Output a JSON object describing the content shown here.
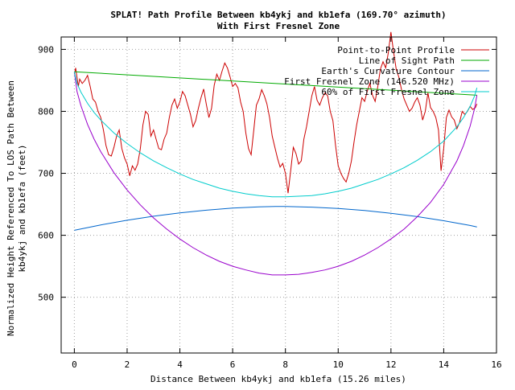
{
  "chart_data": {
    "type": "line",
    "title": "SPLAT! Path Profile Between kb4ykj and kb1efa (169.70° azimuth)",
    "subtitle": "With First Fresnel Zone",
    "xlabel": "Distance Between kb4ykj and kb1efa (15.26 miles)",
    "ylabel_line1": "Normalized Height Referenced To LOS Path Between",
    "ylabel_line2": "kb4ykj and kb1efa (feet)",
    "xlim": [
      -0.5,
      16
    ],
    "ylim": [
      410,
      920
    ],
    "x_ticks": [
      0,
      2,
      4,
      6,
      8,
      10,
      12,
      14,
      16
    ],
    "y_ticks": [
      500,
      600,
      700,
      800,
      900
    ],
    "x_tick_labels": [
      "0",
      "2",
      "4",
      "6",
      "8",
      "10",
      "12",
      "14",
      "16"
    ],
    "y_tick_labels": [
      "500",
      "600",
      "700",
      "800",
      "900"
    ],
    "grid": true,
    "legend_position": "top-right",
    "series": [
      {
        "name": "Point-to-Point Profile",
        "color": "#cc0000",
        "x": [
          0,
          0.05,
          0.1,
          0.15,
          0.2,
          0.3,
          0.4,
          0.5,
          0.6,
          0.7,
          0.8,
          0.9,
          1.0,
          1.1,
          1.2,
          1.3,
          1.4,
          1.5,
          1.6,
          1.7,
          1.8,
          1.9,
          2.0,
          2.1,
          2.2,
          2.3,
          2.4,
          2.5,
          2.6,
          2.7,
          2.8,
          2.9,
          3.0,
          3.1,
          3.2,
          3.3,
          3.4,
          3.5,
          3.6,
          3.7,
          3.8,
          3.9,
          4.0,
          4.1,
          4.2,
          4.3,
          4.4,
          4.5,
          4.6,
          4.7,
          4.8,
          4.9,
          5.0,
          5.1,
          5.2,
          5.3,
          5.4,
          5.5,
          5.6,
          5.7,
          5.8,
          5.9,
          6.0,
          6.1,
          6.2,
          6.3,
          6.4,
          6.5,
          6.6,
          6.7,
          6.8,
          6.9,
          7.0,
          7.1,
          7.2,
          7.3,
          7.4,
          7.5,
          7.6,
          7.7,
          7.8,
          7.9,
          8.0,
          8.1,
          8.2,
          8.3,
          8.4,
          8.5,
          8.6,
          8.7,
          8.8,
          8.9,
          9.0,
          9.1,
          9.2,
          9.3,
          9.4,
          9.5,
          9.6,
          9.7,
          9.8,
          9.9,
          10.0,
          10.1,
          10.2,
          10.3,
          10.4,
          10.5,
          10.6,
          10.7,
          10.8,
          10.9,
          11.0,
          11.1,
          11.2,
          11.3,
          11.4,
          11.5,
          11.6,
          11.7,
          11.8,
          11.9,
          12.0,
          12.1,
          12.2,
          12.3,
          12.4,
          12.5,
          12.6,
          12.7,
          12.8,
          12.9,
          13.0,
          13.1,
          13.2,
          13.3,
          13.4,
          13.5,
          13.6,
          13.7,
          13.8,
          13.9,
          14.0,
          14.1,
          14.2,
          14.3,
          14.4,
          14.5,
          14.6,
          14.7,
          14.8,
          14.9,
          15.0,
          15.1,
          15.2,
          15.26
        ],
        "y": [
          860,
          870,
          855,
          840,
          852,
          845,
          850,
          858,
          840,
          820,
          815,
          800,
          790,
          770,
          745,
          730,
          728,
          742,
          760,
          770,
          740,
          725,
          715,
          696,
          712,
          705,
          715,
          740,
          778,
          800,
          795,
          760,
          770,
          755,
          740,
          738,
          755,
          765,
          790,
          810,
          820,
          805,
          815,
          832,
          825,
          810,
          795,
          775,
          785,
          805,
          822,
          836,
          812,
          790,
          805,
          842,
          860,
          850,
          865,
          878,
          870,
          856,
          840,
          845,
          838,
          815,
          800,
          765,
          740,
          730,
          770,
          810,
          820,
          835,
          825,
          812,
          790,
          760,
          742,
          724,
          710,
          716,
          700,
          668,
          705,
          742,
          732,
          715,
          720,
          755,
          775,
          800,
          825,
          840,
          818,
          810,
          822,
          830,
          825,
          800,
          785,
          745,
          712,
          700,
          692,
          686,
          700,
          720,
          750,
          778,
          800,
          822,
          816,
          832,
          845,
          826,
          816,
          840,
          868,
          880,
          870,
          895,
          928,
          896,
          868,
          855,
          835,
          820,
          810,
          800,
          805,
          815,
          822,
          810,
          786,
          800,
          830,
          806,
          800,
          790,
          770,
          704,
          740,
          790,
          802,
          791,
          786,
          772,
          782,
          800,
          795,
          800,
          808,
          803,
          806,
          812
        ]
      },
      {
        "name": "Line of Sight Path",
        "color": "#00aa00",
        "x": [
          0,
          15.26
        ],
        "y": [
          864,
          826
        ]
      },
      {
        "name": "Earth's Curvature Contour",
        "color": "#0066cc",
        "x": [
          0,
          1,
          2,
          3,
          4,
          5,
          6,
          7,
          7.63,
          8,
          9,
          10,
          11,
          12,
          13,
          14,
          15,
          15.26
        ],
        "y": [
          608.0,
          616.7,
          624.3,
          630.8,
          636.2,
          640.5,
          643.8,
          645.9,
          646.5,
          646.4,
          645.4,
          643.2,
          639.9,
          635.6,
          630.1,
          623.5,
          615.8,
          613.5
        ]
      },
      {
        "name": "First Fresnel Zone (146.520 MHz)",
        "color": "#9900cc",
        "x": [
          0,
          0.1,
          0.25,
          0.5,
          0.75,
          1,
          1.5,
          2,
          2.5,
          3,
          3.5,
          4,
          4.5,
          5,
          5.5,
          6,
          6.5,
          7,
          7.5,
          7.63,
          8,
          8.5,
          9,
          9.5,
          10,
          10.5,
          11,
          11.5,
          12,
          12.5,
          13,
          13.5,
          14,
          14.5,
          14.75,
          15,
          15.16,
          15.26
        ],
        "y": [
          864,
          832,
          809,
          779,
          755,
          735,
          701,
          673,
          649,
          628,
          610,
          594,
          580,
          568,
          558,
          550,
          544,
          539,
          536,
          536,
          536,
          537,
          540,
          544,
          550,
          558,
          568,
          580,
          594,
          610,
          630,
          653,
          682,
          720,
          745,
          776,
          803,
          826
        ]
      },
      {
        "name": "60% of First Fresnel Zone",
        "color": "#00cccc",
        "x": [
          0,
          0.1,
          0.25,
          0.5,
          0.75,
          1,
          1.5,
          2,
          2.5,
          3,
          3.5,
          4,
          4.5,
          5,
          5.5,
          6,
          6.5,
          7,
          7.5,
          7.63,
          8,
          8.5,
          9,
          9.5,
          10,
          10.5,
          11,
          11.5,
          12,
          12.5,
          13,
          13.5,
          14,
          14.5,
          14.75,
          15,
          15.16,
          15.26
        ],
        "y": [
          864,
          845,
          831,
          813,
          798,
          786,
          765,
          748,
          733,
          720,
          709,
          699,
          690,
          683,
          676,
          671,
          667,
          664,
          662,
          662,
          662,
          663,
          664,
          667,
          671,
          676,
          683,
          690,
          699,
          709,
          721,
          735,
          752,
          775,
          790,
          808,
          824,
          838
        ]
      }
    ]
  }
}
